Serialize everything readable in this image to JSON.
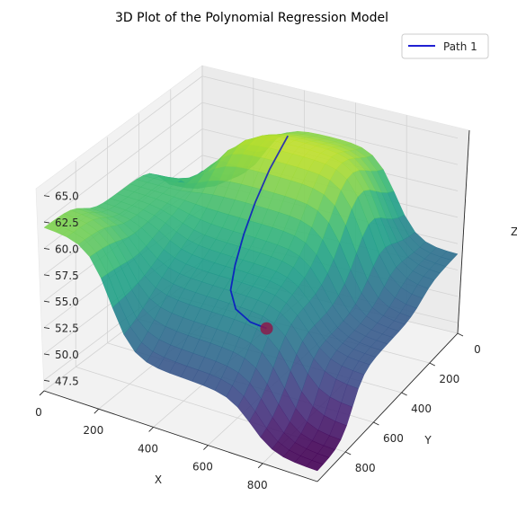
{
  "chart_data": {
    "type": "surface",
    "title": "3D Plot of the Polynomial Regression Model",
    "xlabel": "X",
    "ylabel": "Y",
    "zlabel": "Z",
    "x_ticks": [
      "0",
      "200",
      "400",
      "600",
      "800"
    ],
    "y_ticks": [
      "0",
      "200",
      "400",
      "600",
      "800"
    ],
    "z_ticks": [
      "47.5",
      "50.0",
      "52.5",
      "55.0",
      "57.5",
      "60.0",
      "62.5",
      "65.0"
    ],
    "xlim": [
      0,
      1000
    ],
    "ylim": [
      0,
      1000
    ],
    "zlim": [
      46.5,
      66.0
    ],
    "colormap": "viridis",
    "legend": {
      "position": "top-right",
      "entries": [
        {
          "label": "Path 1",
          "color": "#0000cc"
        }
      ]
    },
    "surface_samples": [
      {
        "x": 0,
        "y": 0,
        "z": 56.0
      },
      {
        "x": 500,
        "y": 0,
        "z": 60.0
      },
      {
        "x": 1000,
        "y": 0,
        "z": 62.0
      },
      {
        "x": 0,
        "y": 500,
        "z": 61.5
      },
      {
        "x": 250,
        "y": 500,
        "z": 65.5
      },
      {
        "x": 500,
        "y": 500,
        "z": 58.0
      },
      {
        "x": 750,
        "y": 500,
        "z": 57.0
      },
      {
        "x": 1000,
        "y": 500,
        "z": 51.0
      },
      {
        "x": 0,
        "y": 1000,
        "z": 54.0
      },
      {
        "x": 500,
        "y": 1000,
        "z": 52.5
      },
      {
        "x": 1000,
        "y": 1000,
        "z": 47.5
      }
    ],
    "path": {
      "name": "Path 1",
      "color": "#0000cc",
      "end_marker_color": "#8b1a4a",
      "points": [
        {
          "x": 230,
          "y": 470,
          "z": 65.0
        },
        {
          "x": 300,
          "y": 440,
          "z": 62.5
        },
        {
          "x": 360,
          "y": 420,
          "z": 60.0
        },
        {
          "x": 410,
          "y": 405,
          "z": 57.5
        },
        {
          "x": 450,
          "y": 395,
          "z": 55.0
        },
        {
          "x": 480,
          "y": 395,
          "z": 53.0
        },
        {
          "x": 490,
          "y": 420,
          "z": 51.5
        },
        {
          "x": 480,
          "y": 470,
          "z": 50.5
        },
        {
          "x": 460,
          "y": 520,
          "z": 50.0
        }
      ]
    }
  }
}
